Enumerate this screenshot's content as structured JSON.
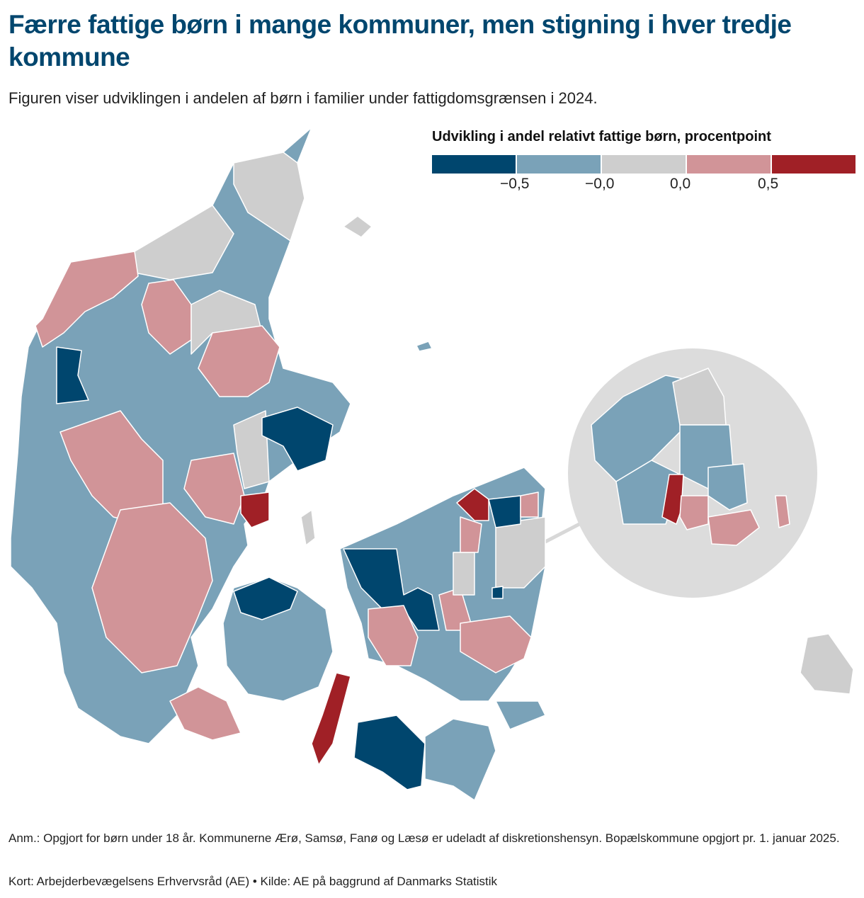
{
  "title": "Færre fattige børn i mange kommuner, men stigning i hver tredje kommune",
  "subtitle": "Figuren viser udviklingen i andelen af børn i familier under fattigdomsgrænsen i 2024.",
  "legend": {
    "title": "Udvikling i andel relativt fattige børn, procentpoint",
    "colors": [
      "#00466e",
      "#7aa2b8",
      "#cecece",
      "#d19498",
      "#a02026"
    ],
    "ticks": [
      "−0,5",
      "−0,0",
      "0,0",
      "0,5"
    ]
  },
  "notes": {
    "anm": "Anm.: Opgjort for børn under 18 år. Kommunerne Ærø, Samsø, Fanø og Læsø er udeladt af diskretionshensyn. Bopælskommune opgjort pr. 1. januar 2025.",
    "source": "Kort: Arbejderbevægelsens Erhvervsråd (AE) • Kilde: AE på baggrund af Danmarks Statistik"
  }
}
